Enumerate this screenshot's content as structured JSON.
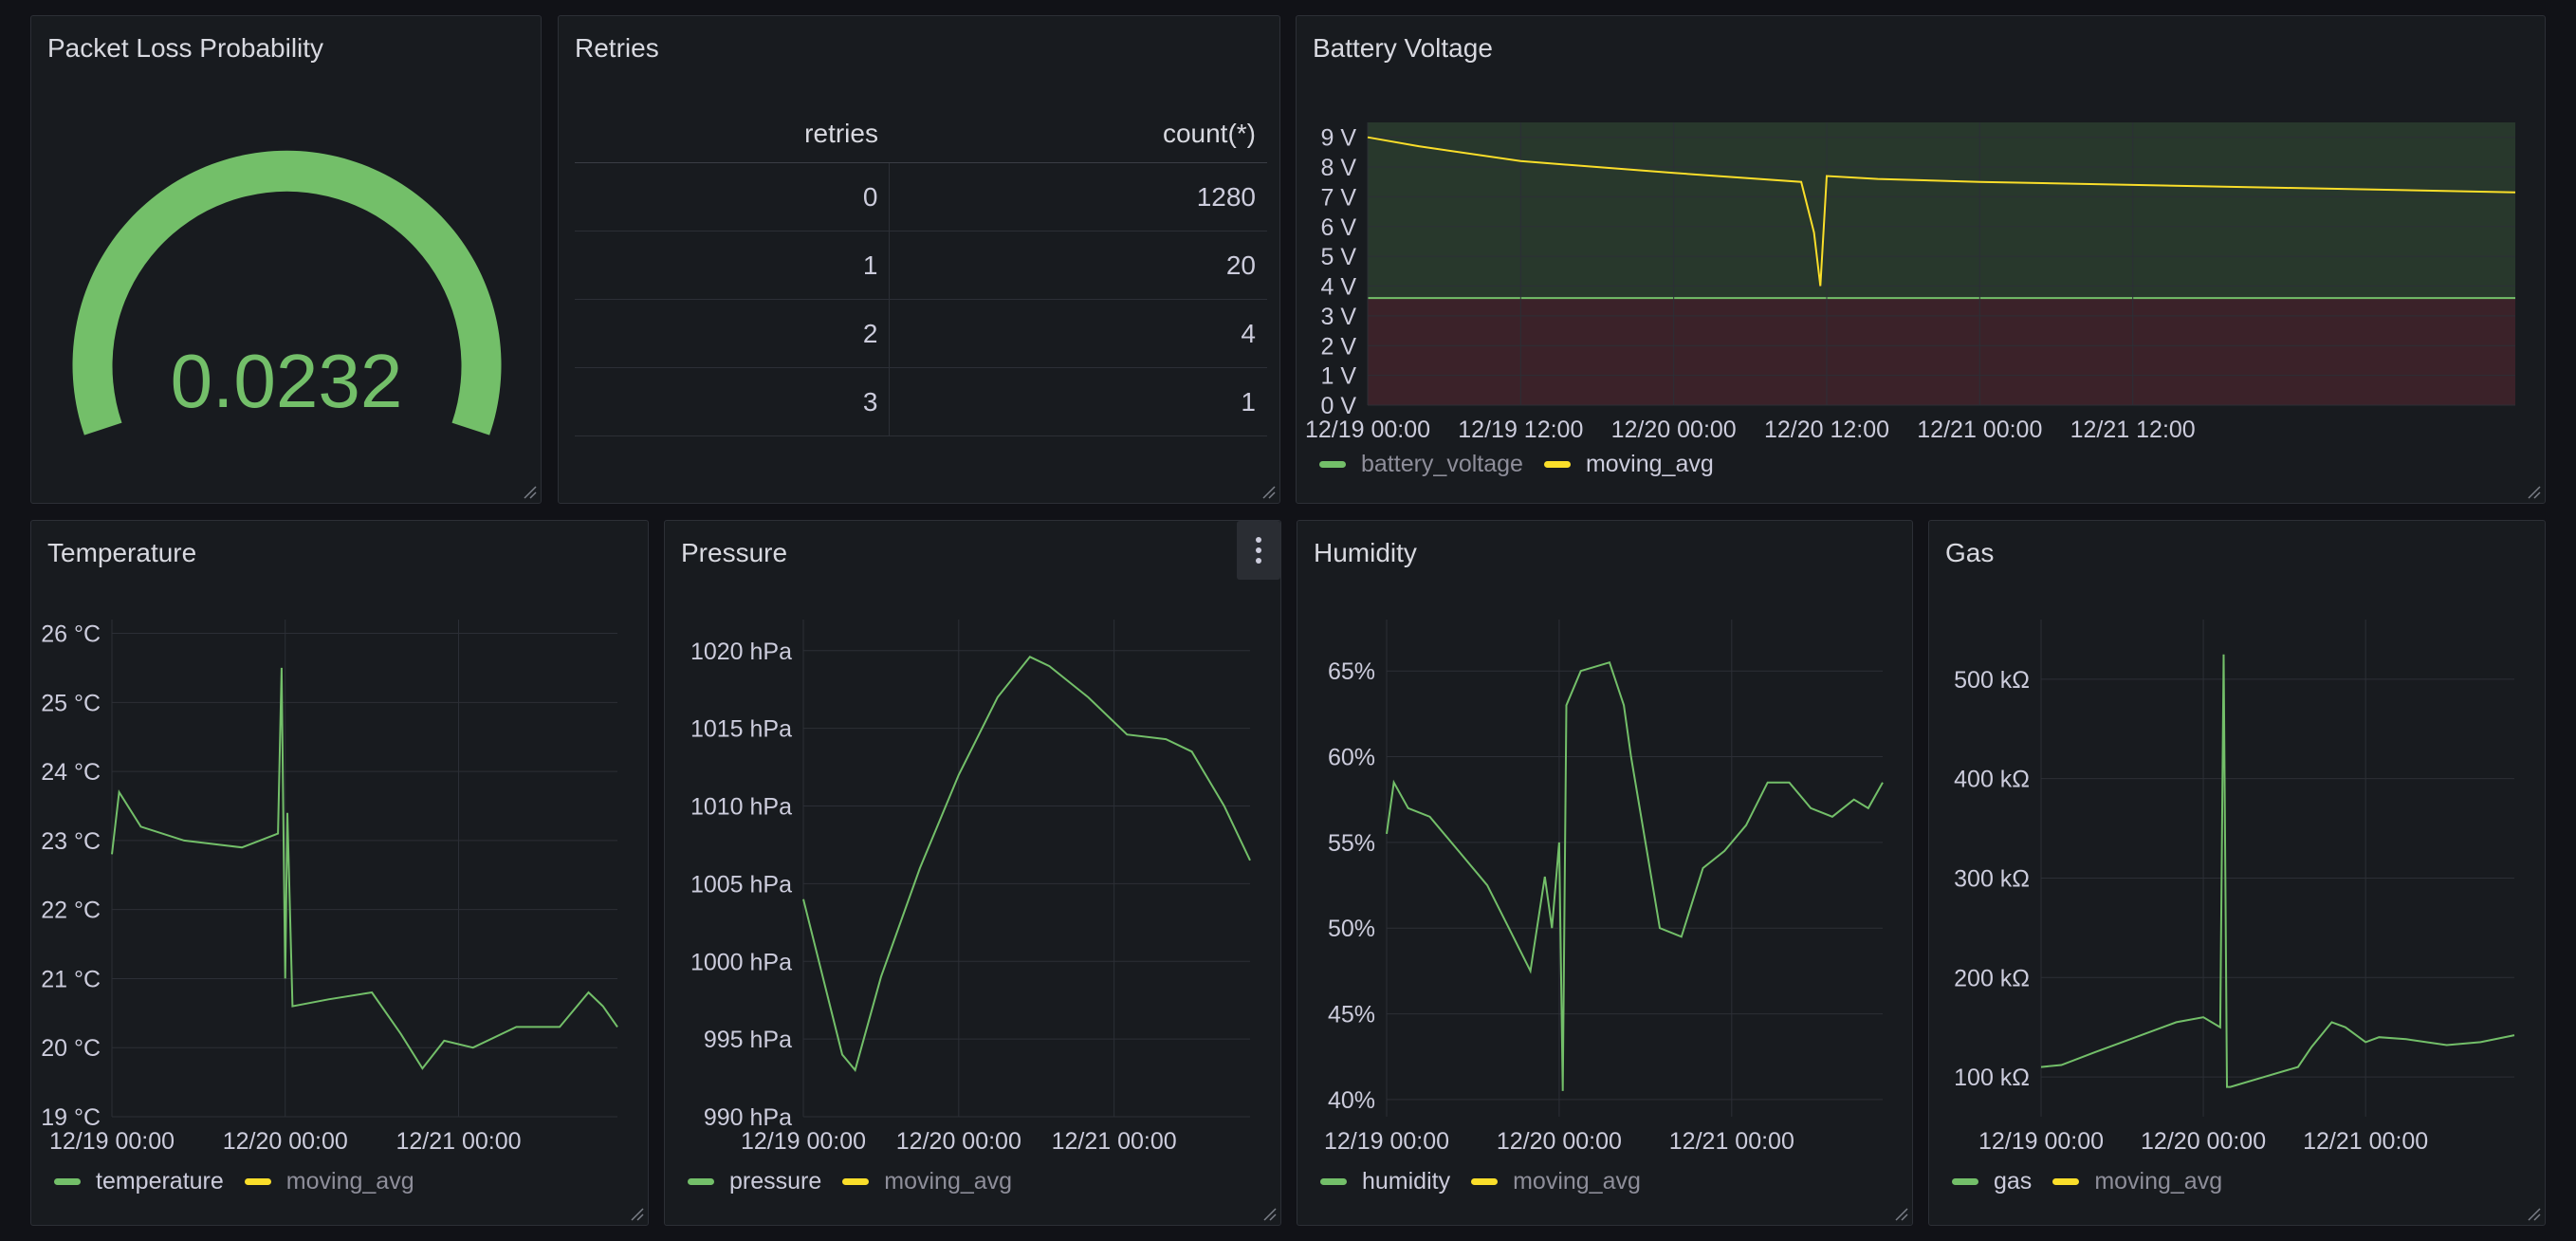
{
  "colors": {
    "green": "#73bf69",
    "yellow": "#fade2a",
    "bg": "#181b1f",
    "grid": "#2c2f36"
  },
  "panels": {
    "packet_loss": {
      "title": "Packet Loss Probability",
      "value": "0.0232",
      "value_fraction": 0.0232
    },
    "retries": {
      "title": "Retries",
      "columns": [
        "retries",
        "count(*)"
      ],
      "rows": [
        [
          "0",
          "1280"
        ],
        [
          "1",
          "20"
        ],
        [
          "2",
          "4"
        ],
        [
          "3",
          "1"
        ]
      ]
    },
    "battery": {
      "title": "Battery Voltage",
      "legend": [
        "battery_voltage",
        "moving_avg"
      ],
      "y_ticks": [
        "9 V",
        "8 V",
        "7 V",
        "6 V",
        "5 V",
        "4 V",
        "3 V",
        "2 V",
        "1 V",
        "0 V"
      ],
      "x_ticks": [
        "12/19 00:00",
        "12/19 12:00",
        "12/20 00:00",
        "12/20 12:00",
        "12/21 00:00",
        "12/21 12:00"
      ]
    },
    "temperature": {
      "title": "Temperature",
      "legend": [
        "temperature",
        "moving_avg"
      ],
      "y_ticks": [
        "26 °C",
        "25 °C",
        "24 °C",
        "23 °C",
        "22 °C",
        "21 °C",
        "20 °C",
        "19 °C"
      ],
      "x_ticks": [
        "12/19 00:00",
        "12/20 00:00",
        "12/21 00:00"
      ]
    },
    "pressure": {
      "title": "Pressure",
      "legend": [
        "pressure",
        "moving_avg"
      ],
      "y_ticks": [
        "1020 hPa",
        "1015 hPa",
        "1010 hPa",
        "1005 hPa",
        "1000 hPa",
        "995 hPa",
        "990 hPa"
      ],
      "x_ticks": [
        "12/19 00:00",
        "12/20 00:00",
        "12/21 00:00"
      ]
    },
    "humidity": {
      "title": "Humidity",
      "legend": [
        "humidity",
        "moving_avg"
      ],
      "y_ticks": [
        "65%",
        "60%",
        "55%",
        "50%",
        "45%",
        "40%"
      ],
      "x_ticks": [
        "12/19 00:00",
        "12/20 00:00",
        "12/21 00:00"
      ]
    },
    "gas": {
      "title": "Gas",
      "legend": [
        "gas",
        "moving_avg"
      ],
      "y_ticks": [
        "500 kΩ",
        "400 kΩ",
        "300 kΩ",
        "200 kΩ",
        "100 kΩ"
      ],
      "x_ticks": [
        "12/19 00:00",
        "12/20 00:00",
        "12/21 00:00"
      ]
    }
  },
  "chart_data": [
    {
      "type": "line",
      "title": "Battery Voltage",
      "ylim": [
        0,
        9.5
      ],
      "thresholds": [
        {
          "value": 3.6,
          "below_color": "red",
          "above_color": "green"
        }
      ],
      "series": [
        {
          "name": "moving_avg",
          "x_hours": [
            0,
            4,
            12,
            24,
            34,
            35,
            35.5,
            36,
            40,
            48,
            60,
            72,
            84,
            90
          ],
          "values": [
            9.0,
            8.7,
            8.2,
            7.8,
            7.5,
            5.8,
            4.0,
            7.7,
            7.6,
            7.5,
            7.4,
            7.3,
            7.2,
            7.15
          ]
        }
      ]
    },
    {
      "type": "line",
      "title": "Temperature",
      "ylim": [
        19,
        26.2
      ],
      "series": [
        {
          "name": "temperature",
          "x_hours": [
            0,
            1,
            4,
            10,
            18,
            23,
            23.5,
            24,
            24.3,
            25,
            30,
            36,
            40,
            43,
            46,
            50,
            56,
            62,
            66,
            68,
            70
          ],
          "values": [
            22.8,
            23.7,
            23.2,
            23.0,
            22.9,
            23.1,
            25.5,
            21.0,
            23.4,
            20.6,
            20.7,
            20.8,
            20.2,
            19.7,
            20.1,
            20.0,
            20.3,
            20.3,
            20.8,
            20.6,
            20.3
          ]
        }
      ]
    },
    {
      "type": "line",
      "title": "Pressure",
      "ylim": [
        990,
        1022
      ],
      "series": [
        {
          "name": "pressure",
          "x_hours": [
            0,
            3,
            6,
            8,
            12,
            18,
            24,
            30,
            35,
            38,
            44,
            50,
            56,
            60,
            65,
            69
          ],
          "values": [
            1004,
            999,
            994,
            993,
            999,
            1006,
            1012,
            1017,
            1019.6,
            1019,
            1017,
            1014.6,
            1014.3,
            1013.5,
            1010,
            1006.5
          ]
        }
      ]
    },
    {
      "type": "line",
      "title": "Humidity",
      "ylim": [
        39,
        68
      ],
      "series": [
        {
          "name": "humidity",
          "x_hours": [
            0,
            1,
            3,
            6,
            10,
            14,
            17,
            20,
            22,
            23,
            24,
            24.5,
            25,
            27,
            31,
            33,
            34,
            36,
            38,
            41,
            44,
            47,
            50,
            53,
            56,
            59,
            62,
            65,
            67,
            69
          ],
          "values": [
            55.5,
            58.5,
            57,
            56.5,
            54.5,
            52.5,
            50,
            47.5,
            53,
            50,
            55,
            40.5,
            63,
            65,
            65.5,
            63,
            60,
            55,
            50,
            49.5,
            53.5,
            54.5,
            56,
            58.5,
            58.5,
            57,
            56.5,
            57.5,
            57,
            58.5
          ]
        }
      ]
    },
    {
      "type": "line",
      "title": "Gas",
      "ylim": [
        60,
        560
      ],
      "series": [
        {
          "name": "gas",
          "x_hours": [
            0,
            3,
            8,
            14,
            20,
            24,
            26.5,
            27,
            27.5,
            28,
            29,
            33,
            38,
            40,
            43,
            45,
            48,
            50,
            54,
            60,
            65,
            70
          ],
          "values": [
            110,
            112,
            125,
            140,
            155,
            160,
            150,
            525,
            90,
            90,
            92,
            100,
            110,
            130,
            155,
            150,
            135,
            140,
            138,
            132,
            135,
            142
          ]
        }
      ]
    }
  ]
}
